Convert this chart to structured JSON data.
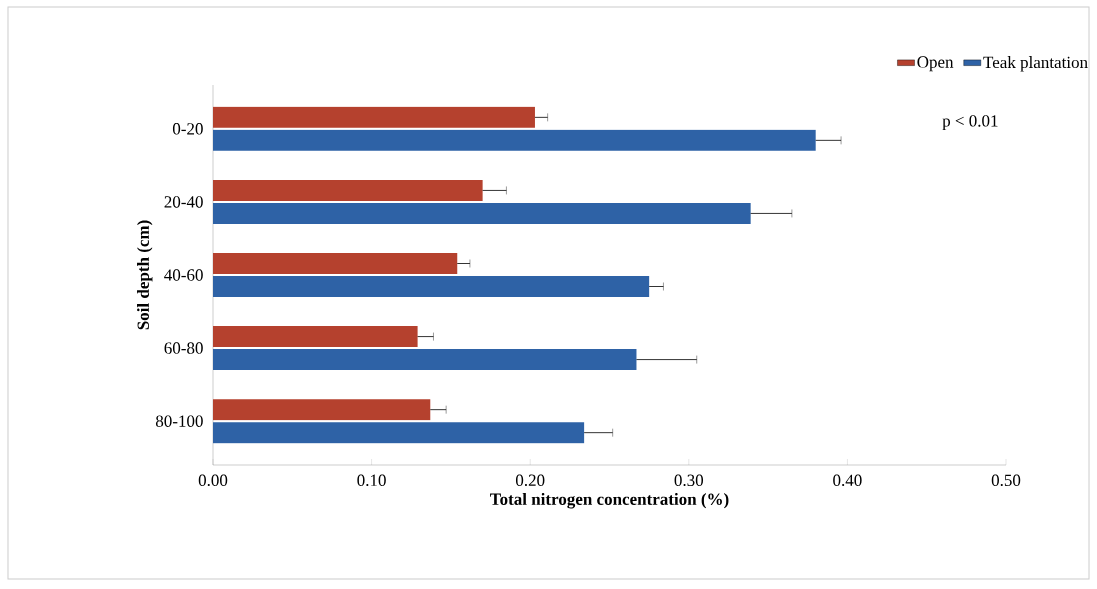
{
  "chart_data": {
    "type": "bar",
    "orientation": "horizontal",
    "xlabel": "Total nitrogen concentration (%)",
    "ylabel": "Soil depth (cm)",
    "categories": [
      "0-20",
      "20-40",
      "40-60",
      "60-80",
      "80-100"
    ],
    "series": [
      {
        "name": "Open",
        "color": "#b5412e",
        "values": [
          0.203,
          0.17,
          0.154,
          0.129,
          0.137
        ],
        "errors": [
          0.008,
          0.015,
          0.008,
          0.01,
          0.01
        ]
      },
      {
        "name": "Teak plantation",
        "color": "#2e62a6",
        "values": [
          0.38,
          0.339,
          0.275,
          0.267,
          0.234
        ],
        "errors": [
          0.016,
          0.026,
          0.009,
          0.038,
          0.018
        ]
      }
    ],
    "xlim": [
      0,
      0.5
    ],
    "xticks": [
      {
        "value": 0,
        "label": "0.00"
      },
      {
        "value": 0.1,
        "label": "0.10"
      },
      {
        "value": 0.2,
        "label": "0.20"
      },
      {
        "value": 0.3,
        "label": "0.30"
      },
      {
        "value": 0.4,
        "label": "0.40"
      },
      {
        "value": 0.5,
        "label": "0.50"
      }
    ],
    "legend": "top right",
    "grid": false,
    "annotations": [
      "p < 0.01"
    ]
  }
}
